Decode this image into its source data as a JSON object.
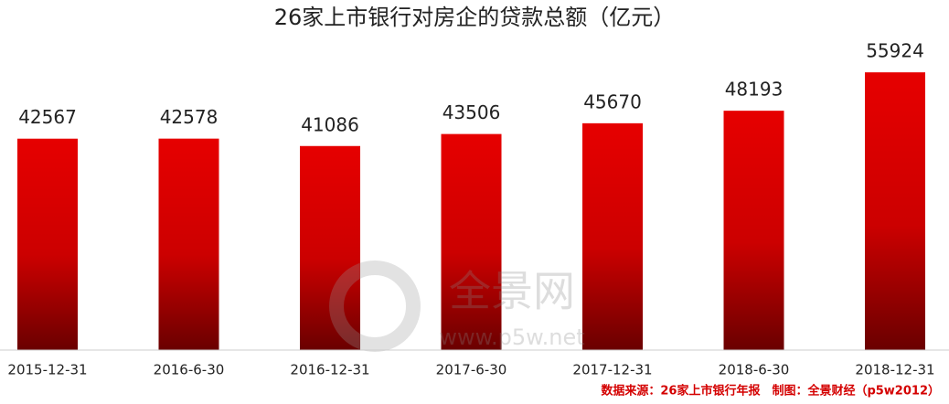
{
  "chart_data": {
    "type": "bar",
    "title": "26家上市银行对房企的贷款总额（亿元）",
    "categories": [
      "2015-12-31",
      "2016-6-30",
      "2016-12-31",
      "2017-6-30",
      "2017-12-31",
      "2018-6-30",
      "2018-12-31"
    ],
    "values": [
      42567,
      42578,
      41086,
      43506,
      45670,
      48193,
      55924
    ],
    "color": "#e60000",
    "ylim": [
      0,
      60000
    ],
    "watermark": "全景网",
    "watermark_url": "www.p5w.net",
    "source": "数据来源：26家上市银行年报　制图：全景财经（p5w2012）"
  }
}
